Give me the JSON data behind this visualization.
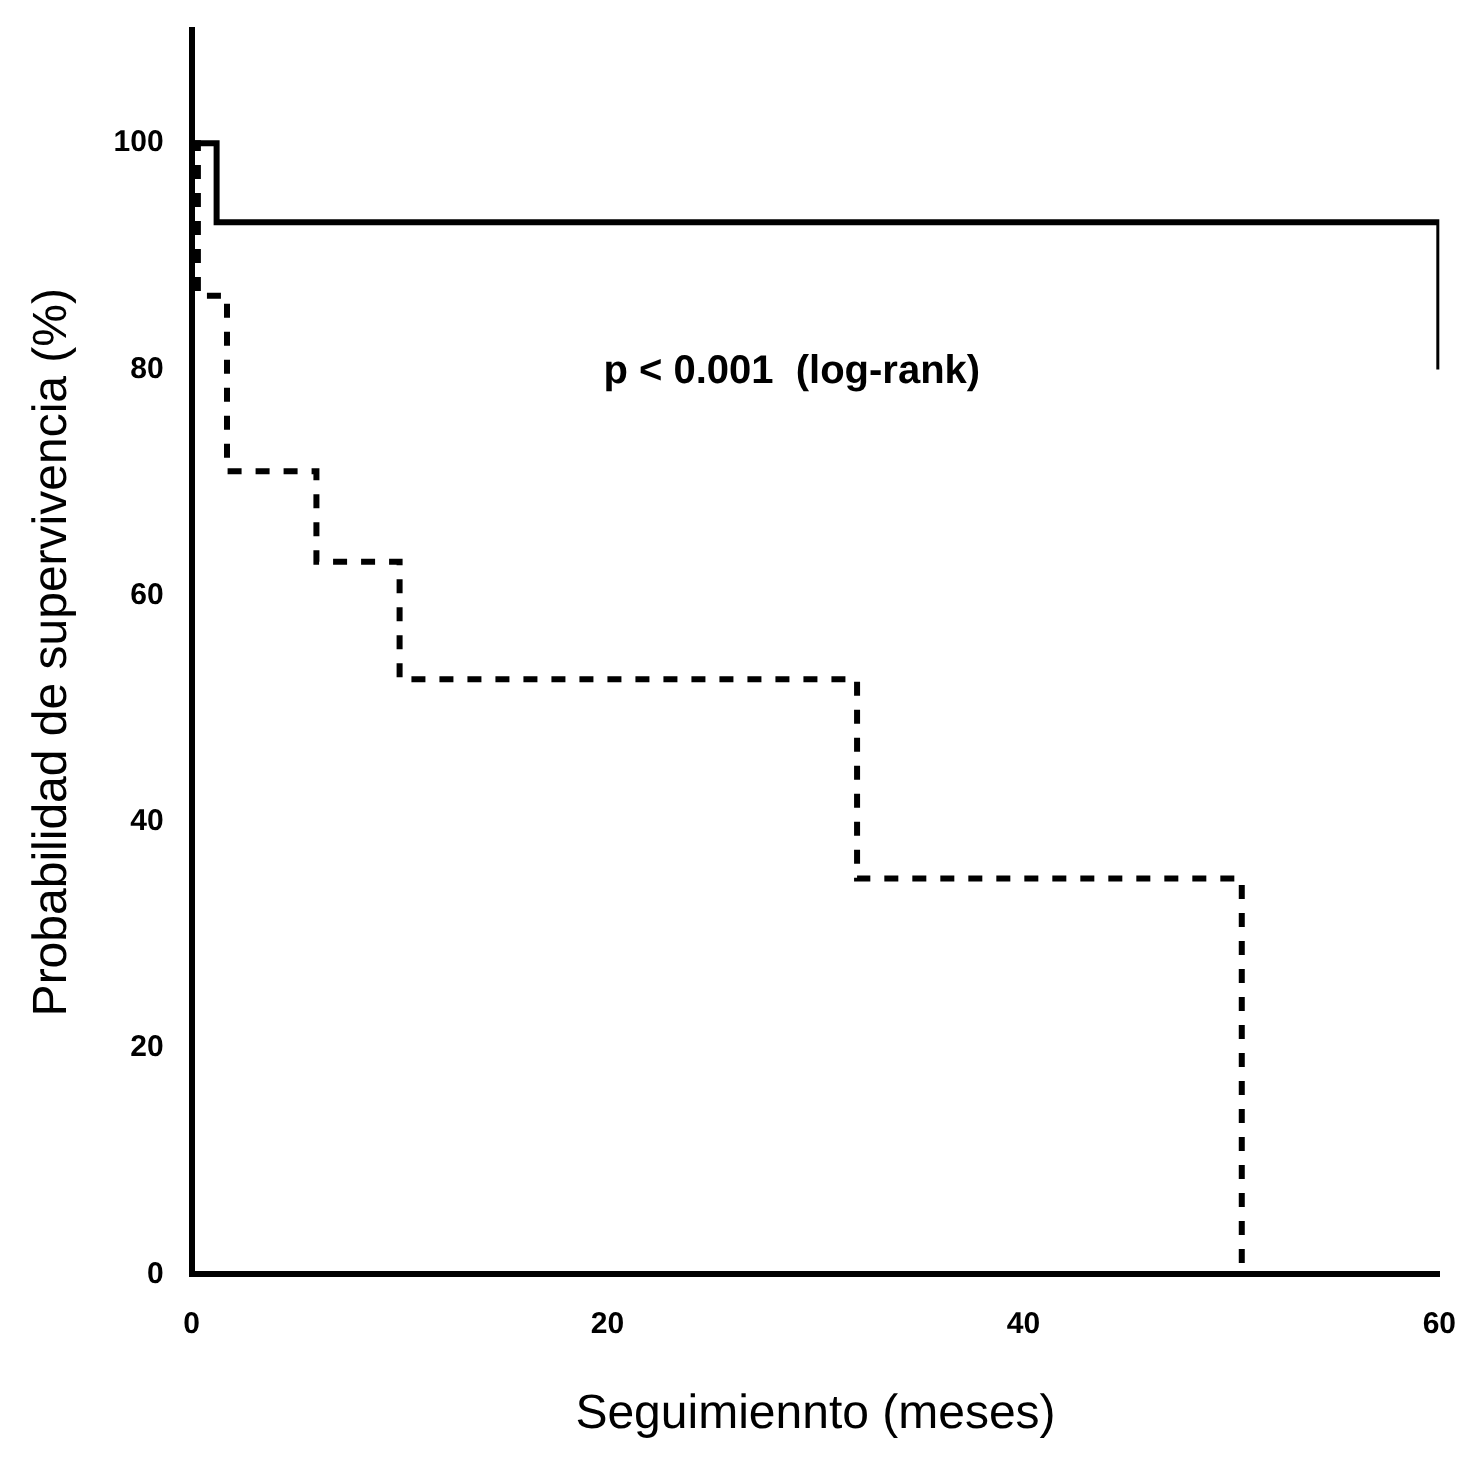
{
  "chart_data": {
    "type": "step",
    "xlabel": "Seguimiennto (meses)",
    "ylabel": "Probabilidad de supervivencia (%)",
    "xlim": [
      0,
      60
    ],
    "xticks": [
      0,
      20,
      40,
      60
    ],
    "ylim": [
      0,
      110
    ],
    "yticks": [
      0,
      20,
      40,
      60,
      80,
      100
    ],
    "grid": false,
    "legend": false,
    "annotations": [
      "p < 0.001  (log-rank)"
    ],
    "series": [
      {
        "color": "#000000",
        "line_style": "solid",
        "x": [
          0,
          1.2,
          60,
          60
        ],
        "values": [
          100,
          93,
          93,
          80
        ]
      },
      {
        "color": "#000000",
        "line_style": "dashed",
        "x": [
          0,
          0.3,
          1.7,
          6,
          10,
          32,
          50.5
        ],
        "values": [
          100,
          86.5,
          71,
          63,
          52.6,
          35,
          0
        ]
      }
    ]
  }
}
